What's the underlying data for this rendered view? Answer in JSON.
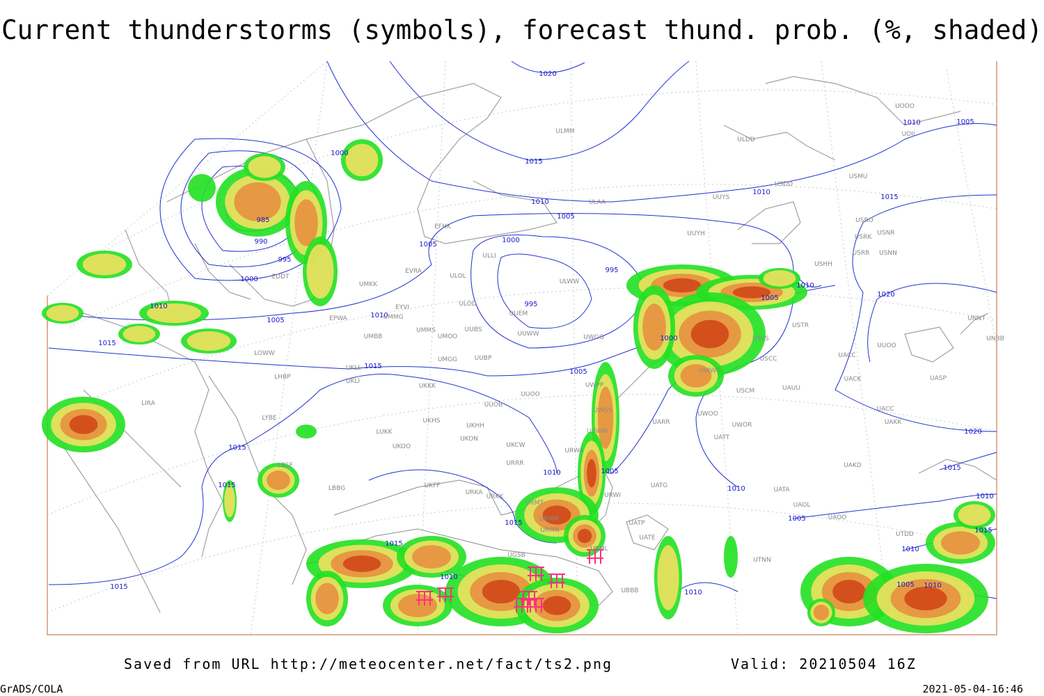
{
  "title": "Current thunderstorms (symbols), forecast thund. prob. (%, shaded)",
  "footer": {
    "source": "Saved from URL http://meteocenter.net/fact/ts2.png",
    "valid": "Valid: 20210504 16Z",
    "software": "GrADS/COLA",
    "timestamp": "2021-05-04-16:46"
  },
  "isobar_labels": [
    "1020",
    "1000",
    "1015",
    "1010",
    "1005",
    "1010",
    "1015",
    "1010",
    "985",
    "1005",
    "1005",
    "990",
    "1000",
    "995",
    "995",
    "1000",
    "1010",
    "1020",
    "1005",
    "1010",
    "995",
    "1010",
    "1005",
    "1000",
    "1015",
    "1015",
    "1005",
    "1015",
    "1020",
    "1015",
    "1010",
    "1005",
    "1015",
    "1010",
    "1010",
    "1015",
    "1005",
    "1015",
    "1015",
    "1010",
    "1010",
    "1005",
    "1010",
    "1015",
    "1010"
  ],
  "stations": [
    "ULMM",
    "ULDD",
    "USMU",
    "USDD",
    "UUYS",
    "ULAA",
    "UOOO",
    "UOII",
    "USRO",
    "USRK",
    "USNR",
    "USRR",
    "USNN",
    "UUYH",
    "USHH",
    "ULLI",
    "EFHK",
    "EVRA",
    "ULOL",
    "UMKK",
    "ULWW",
    "ULOD",
    "UUEM",
    "EYVI",
    "UMMG",
    "EPWA",
    "UMMS",
    "UUBS",
    "UUWW",
    "UWGG",
    "UMOO",
    "UMBB",
    "UUOO",
    "UNNT",
    "UNBB",
    "USTR",
    "USSS",
    "USCC",
    "UACC",
    "LOWW",
    "UMGG",
    "UUBP",
    "UWWU",
    "UKLL",
    "UKLI",
    "LHBP",
    "UKKK",
    "UWPP",
    "UACK",
    "UASP",
    "USCM",
    "UAUU",
    "UUOO",
    "UUOB",
    "UWSS",
    "UACC",
    "UARR",
    "UWOO",
    "UWOR",
    "UAKK",
    "LIRA",
    "LYBE",
    "UKHH",
    "UKHS",
    "LUKK",
    "UKON",
    "UKOO",
    "UKCW",
    "URWW",
    "UATT",
    "URRR",
    "UAKD",
    "URWA",
    "UKFF",
    "LBBG",
    "URKA",
    "URKK",
    "UATG",
    "UATA",
    "LBSF",
    "URWI",
    "URMT",
    "UAOL",
    "UAOO",
    "URMM",
    "URMN",
    "UATP",
    "UATE",
    "URML",
    "UTNN",
    "UBBB",
    "UGSB",
    "UTDD",
    "EDDT"
  ]
}
